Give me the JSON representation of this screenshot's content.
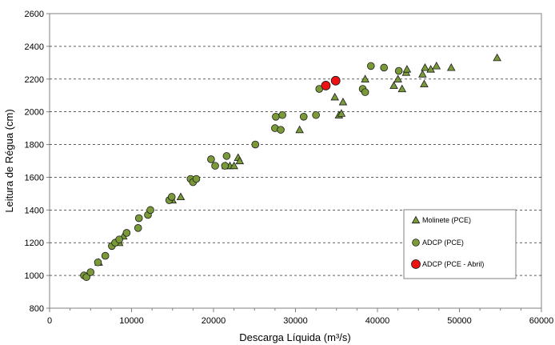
{
  "chart_data": {
    "type": "scatter",
    "xlabel": "Descarga Líquida (m³/s)",
    "ylabel": "Leitura de Régua (cm)",
    "xlim": [
      0,
      60000
    ],
    "ylim": [
      800,
      2600
    ],
    "x_ticks": [
      0,
      10000,
      20000,
      30000,
      40000,
      50000,
      60000
    ],
    "y_ticks": [
      800,
      1000,
      1200,
      1400,
      1600,
      1800,
      2000,
      2200,
      2400,
      2600
    ],
    "grid": "horizontal dashed",
    "legend_position": "bottom-right",
    "series": [
      {
        "name": "Molinete (PCE)",
        "marker": "triangle",
        "color": "#7a9a3a",
        "points": [
          [
            6000,
            1080
          ],
          [
            8500,
            1200
          ],
          [
            9000,
            1240
          ],
          [
            15000,
            1460
          ],
          [
            16000,
            1480
          ],
          [
            21500,
            1670
          ],
          [
            22000,
            1670
          ],
          [
            22500,
            1670
          ],
          [
            23000,
            1720
          ],
          [
            23200,
            1700
          ],
          [
            30500,
            1890
          ],
          [
            34800,
            2090
          ],
          [
            35300,
            1980
          ],
          [
            35600,
            1990
          ],
          [
            35800,
            2060
          ],
          [
            38500,
            2200
          ],
          [
            42000,
            2160
          ],
          [
            42500,
            2200
          ],
          [
            43000,
            2140
          ],
          [
            43500,
            2240
          ],
          [
            43600,
            2260
          ],
          [
            45500,
            2230
          ],
          [
            45700,
            2170
          ],
          [
            45800,
            2270
          ],
          [
            46500,
            2260
          ],
          [
            47200,
            2280
          ],
          [
            49000,
            2270
          ],
          [
            54600,
            2330
          ]
        ]
      },
      {
        "name": "ADCP (PCE)",
        "marker": "circle",
        "color": "#7a9a3a",
        "points": [
          [
            4200,
            1000
          ],
          [
            4500,
            990
          ],
          [
            5000,
            1020
          ],
          [
            5900,
            1080
          ],
          [
            6800,
            1120
          ],
          [
            7600,
            1180
          ],
          [
            8000,
            1200
          ],
          [
            8500,
            1220
          ],
          [
            9400,
            1260
          ],
          [
            10800,
            1290
          ],
          [
            10900,
            1350
          ],
          [
            12000,
            1370
          ],
          [
            12300,
            1400
          ],
          [
            14600,
            1460
          ],
          [
            14900,
            1480
          ],
          [
            17200,
            1590
          ],
          [
            17500,
            1570
          ],
          [
            17900,
            1590
          ],
          [
            19700,
            1710
          ],
          [
            20200,
            1670
          ],
          [
            21400,
            1670
          ],
          [
            21600,
            1730
          ],
          [
            25100,
            1800
          ],
          [
            27500,
            1900
          ],
          [
            27600,
            1970
          ],
          [
            28200,
            1890
          ],
          [
            28400,
            1980
          ],
          [
            31000,
            1970
          ],
          [
            32500,
            1980
          ],
          [
            32900,
            2140
          ],
          [
            38200,
            2140
          ],
          [
            38500,
            2120
          ],
          [
            39200,
            2280
          ],
          [
            40800,
            2270
          ],
          [
            42600,
            2250
          ]
        ]
      },
      {
        "name": "ADCP (PCE - Abril)",
        "marker": "circle",
        "color": "#ee1111",
        "points": [
          [
            33700,
            2160
          ],
          [
            34900,
            2190
          ]
        ]
      }
    ]
  }
}
